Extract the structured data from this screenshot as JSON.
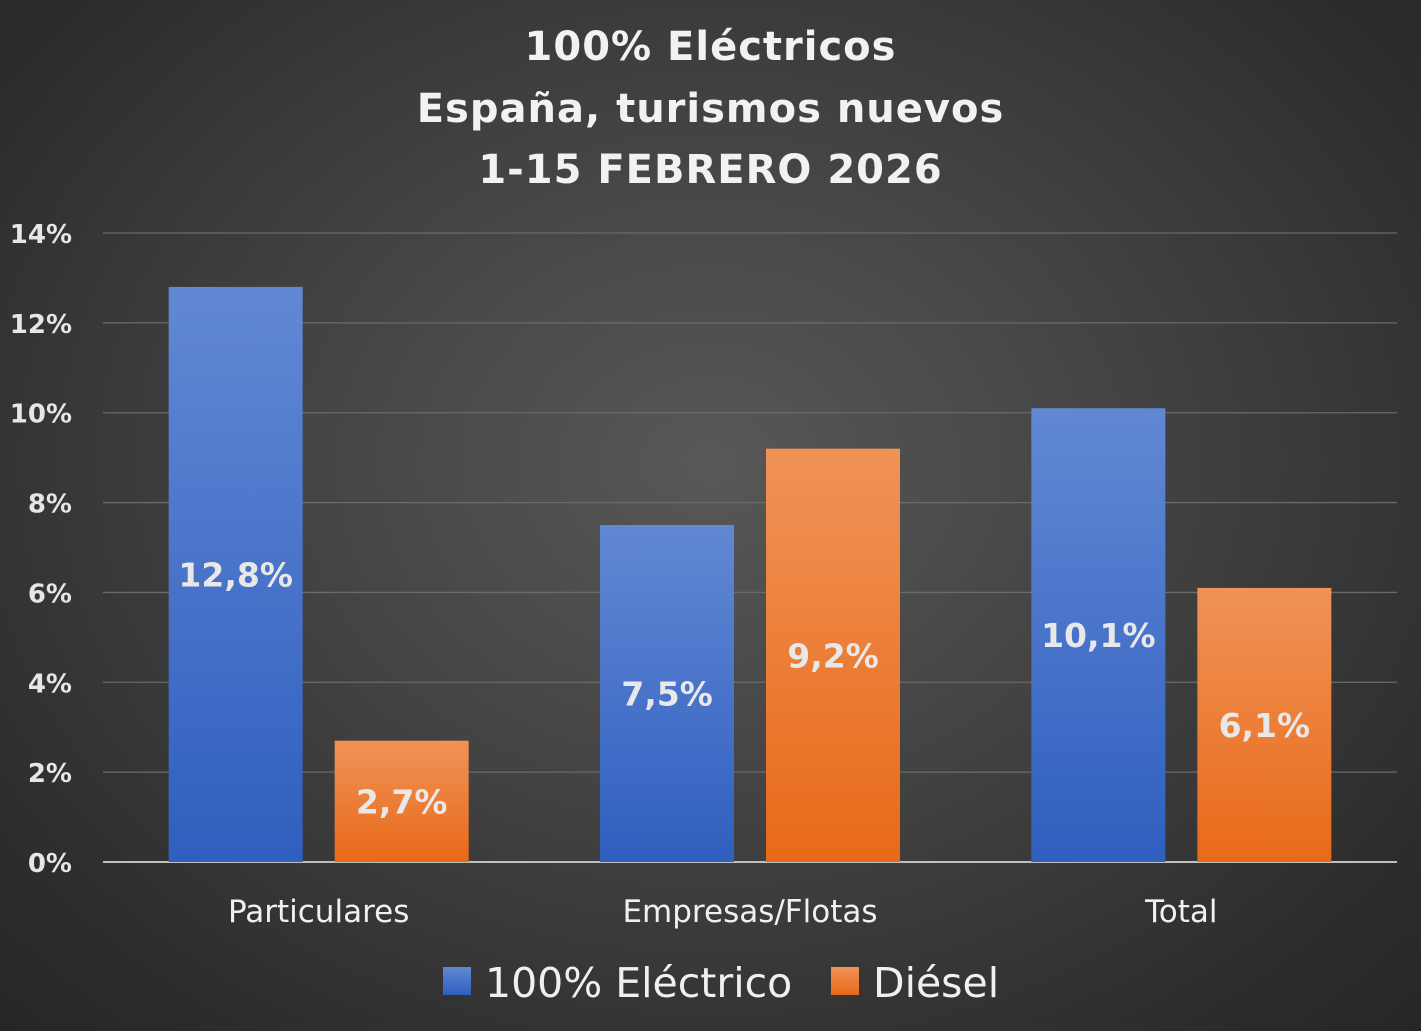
{
  "chart_data": {
    "type": "bar",
    "title": [
      "100% Eléctricos",
      "España, turismos nuevos",
      "1-15 FEBRERO 2026"
    ],
    "categories": [
      "Particulares",
      "Empresas/Flotas",
      "Total"
    ],
    "series": [
      {
        "name": "100% Eléctrico",
        "color": "#4472c4",
        "values": [
          12.8,
          7.5,
          10.1
        ],
        "labels": [
          "12,8%",
          "7,5%",
          "10,1%"
        ]
      },
      {
        "name": "Diésel",
        "color": "#ed7d31",
        "values": [
          2.7,
          9.2,
          6.1
        ],
        "labels": [
          "2,7%",
          "9,2%",
          "6,1%"
        ]
      }
    ],
    "ylim": [
      0,
      14
    ],
    "yticks": [
      "0%",
      "2%",
      "4%",
      "6%",
      "8%",
      "10%",
      "12%",
      "14%"
    ],
    "grid": true,
    "legend": "bottom",
    "xlabel": "",
    "ylabel": ""
  }
}
